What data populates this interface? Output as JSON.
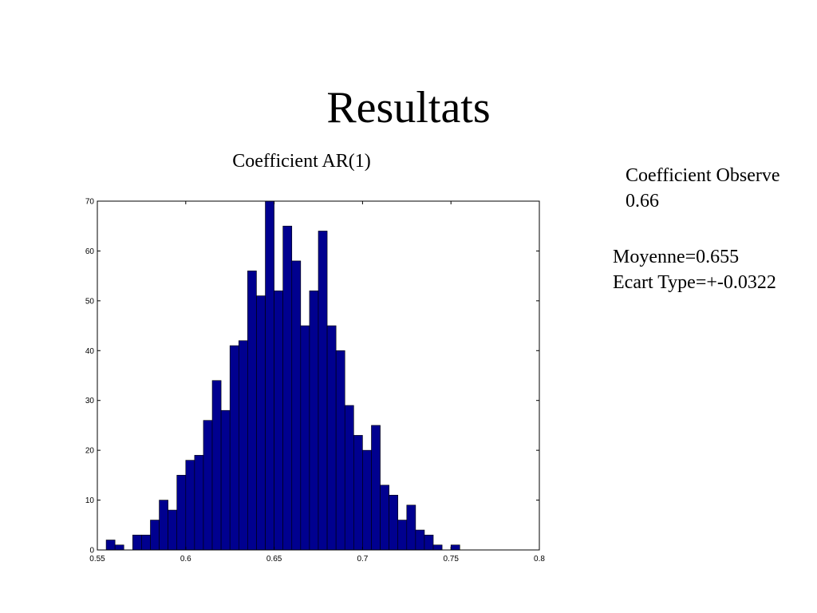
{
  "slide": {
    "title": "Resultats"
  },
  "observed": {
    "label": "Coefficient Observe",
    "value": "0.66"
  },
  "stats": {
    "mean": "Moyenne=0.655",
    "std": "Ecart Type=+-0.0322"
  },
  "colors": {
    "bar_fill": "#00008f",
    "bar_edge": "#000000",
    "axis": "#000000"
  },
  "chart_data": {
    "type": "bar",
    "title": "Coefficient AR(1)",
    "xlabel": "",
    "ylabel": "",
    "xlim": [
      0.55,
      0.8
    ],
    "ylim": [
      0,
      70
    ],
    "bin_width": 0.005,
    "x": [
      0.5575,
      0.5625,
      0.5675,
      0.5725,
      0.5775,
      0.5825,
      0.5875,
      0.5925,
      0.5975,
      0.6025,
      0.6075,
      0.6125,
      0.6175,
      0.6225,
      0.6275,
      0.6325,
      0.6375,
      0.6425,
      0.6475,
      0.6525,
      0.6575,
      0.6625,
      0.6675,
      0.6725,
      0.6775,
      0.6825,
      0.6875,
      0.6925,
      0.6975,
      0.7025,
      0.7075,
      0.7125,
      0.7175,
      0.7225,
      0.7275,
      0.7325,
      0.7375,
      0.7425,
      0.7475,
      0.7525
    ],
    "values": [
      2,
      1,
      0,
      3,
      3,
      6,
      10,
      8,
      15,
      18,
      19,
      26,
      34,
      28,
      41,
      42,
      56,
      51,
      70,
      52,
      65,
      58,
      45,
      52,
      64,
      45,
      40,
      29,
      23,
      20,
      25,
      13,
      11,
      6,
      9,
      4,
      3,
      1,
      0,
      1
    ],
    "xticks": [
      "0.55",
      "0.6",
      "0.65",
      "0.7",
      "0.75",
      "0.8"
    ],
    "xtick_values": [
      0.55,
      0.6,
      0.65,
      0.7,
      0.75,
      0.8
    ],
    "yticks": [
      "0",
      "10",
      "20",
      "30",
      "40",
      "50",
      "60",
      "70"
    ],
    "ytick_values": [
      0,
      10,
      20,
      30,
      40,
      50,
      60,
      70
    ],
    "grid": false,
    "legend": "none"
  }
}
